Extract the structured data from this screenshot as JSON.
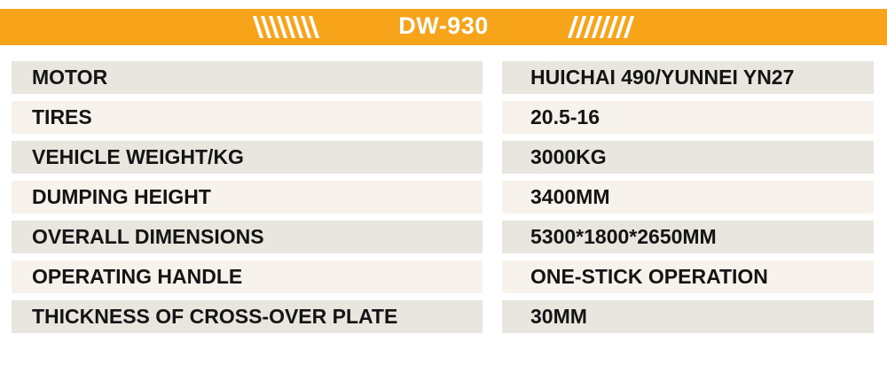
{
  "banner": {
    "title": "DW-930",
    "bg_color": "#F8A41B",
    "text_color": "#FFFFFF",
    "left_slashes_count": 8,
    "right_slashes_count": 8,
    "left_slashes_direction": "backslash",
    "right_slashes_direction": "forwardslash"
  },
  "table": {
    "text_color": "#141414",
    "row_color_odd": "#E9E5DF",
    "row_color_even": "#F7F2EB",
    "rows": [
      {
        "label": "MOTOR",
        "value": "HUICHAI 490/YUNNEI YN27"
      },
      {
        "label": "TIRES",
        "value": "20.5-16"
      },
      {
        "label": "VEHICLE WEIGHT/KG",
        "value": "3000KG"
      },
      {
        "label": "DUMPING HEIGHT",
        "value": "3400MM"
      },
      {
        "label": "OVERALL DIMENSIONS",
        "value": "5300*1800*2650MM"
      },
      {
        "label": "OPERATING HANDLE",
        "value": "ONE-STICK OPERATION"
      },
      {
        "label": "THICKNESS OF CROSS-OVER PLATE",
        "value": "30MM"
      }
    ]
  }
}
